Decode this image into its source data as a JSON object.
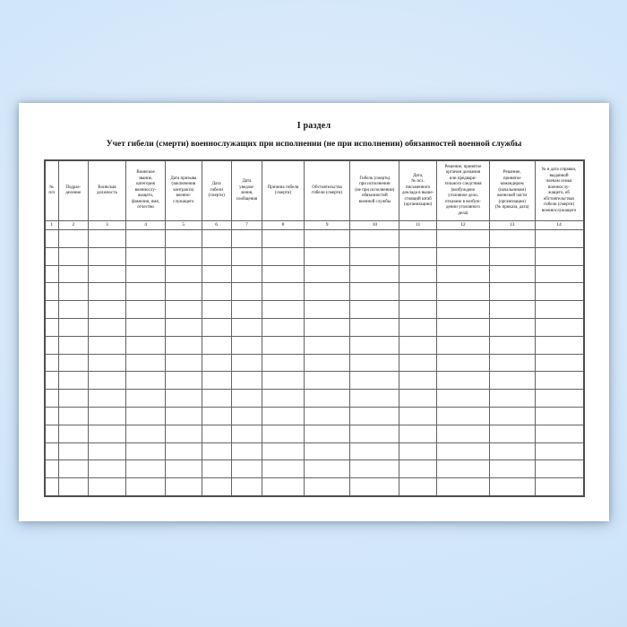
{
  "document": {
    "section_title": "I раздел",
    "table_title": "Учет гибели (смерти) военнослужащих при исполнении (не при исполнении) обязанностей военной службы"
  },
  "table": {
    "columns": [
      {
        "number": "1",
        "header": "№\nп/п"
      },
      {
        "number": "2",
        "header": "Подраз-\nделение"
      },
      {
        "number": "3",
        "header": "Воинская\nдолжность"
      },
      {
        "number": "4",
        "header": "Воинское\nзвание,\nкатегория\nвоеннослу-\nжащего,\nфамилия, имя,\nотчество"
      },
      {
        "number": "5",
        "header": "Дата призыва\n(заключения\nконтракта)\nвоенно-\nслужащего"
      },
      {
        "number": "6",
        "header": "Дата\nгибели\n(смерти)"
      },
      {
        "number": "7",
        "header": "Дата\nуведом-\nления,\nсообщения"
      },
      {
        "number": "8",
        "header": "Причина гибели\n(смерти)"
      },
      {
        "number": "9",
        "header": "Обстоятельства\nгибели (смерти)"
      },
      {
        "number": "10",
        "header": "Гибель (смерть)\nпри исполнении\n(не при исполнении)\nобязанностей\nвоенной службы"
      },
      {
        "number": "11",
        "header": "Дата,\n№ исх.\nписьменного\nдоклада в выше-\nстоящий штаб\n(организацию)"
      },
      {
        "number": "12",
        "header": "Решение, принятое\nорганом дознания\nили предвари-\nтельного следствия\n(возбуждено\nуголовное дело,\nотказано в возбуж-\nдении уголовного\nдела)"
      },
      {
        "number": "13",
        "header": "Решение,\nпринятое\nкомандиром\n(начальником)\nвоинской части\n(организации)\n(№ приказа, дата)"
      },
      {
        "number": "14",
        "header": "№ и дата справки,\nвыданной\nчленам семьи\nвоеннослу-\nжащего, об\nобстоятельствах\nгибели (смерти)\nвоеннослужащего"
      }
    ],
    "blank_row_count": 15,
    "cell_values": []
  }
}
